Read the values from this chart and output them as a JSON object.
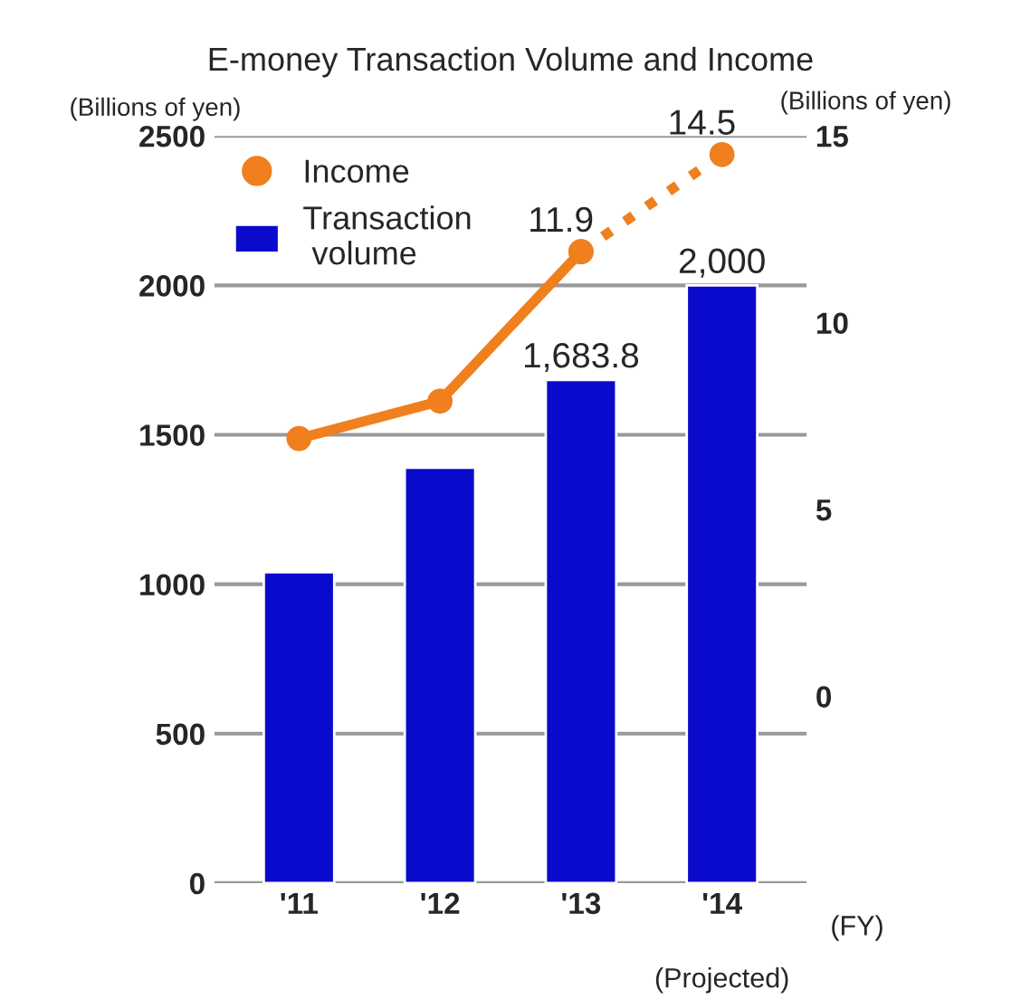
{
  "chart_data": {
    "type": "bar",
    "title": "E-money Transaction Volume and Income",
    "ylabel": "(Billions of yen)",
    "y2label": "(Billions of yen)",
    "categories": [
      "'11",
      "'12",
      "'13",
      "'14"
    ],
    "series": [
      {
        "name": "Transaction volume",
        "color": "#0a0acc",
        "values": [
          1040,
          1390,
          1683.8,
          2000
        ],
        "value_labels": [
          null,
          null,
          "1,683.8",
          "2,000"
        ]
      },
      {
        "name": "Income",
        "type": "line",
        "axis": "y2",
        "color": "#f07f1e",
        "marker": "circle",
        "line_style": "solid",
        "values": [
          6.9,
          7.9,
          11.9,
          null
        ],
        "value_labels": [
          null,
          null,
          "11.9",
          null
        ]
      },
      {
        "type": "line",
        "axis": "y2",
        "color": "#f07f1e",
        "marker": "circle",
        "line_style": "dotted",
        "values": [
          null,
          null,
          11.9,
          14.5
        ],
        "value_labels": [
          null,
          null,
          null,
          "14.5"
        ]
      }
    ],
    "ylim": [
      0,
      2500
    ],
    "yticks": [
      0,
      500,
      1000,
      1500,
      2000,
      2500
    ],
    "y2lim": [
      -5,
      15
    ],
    "y2ticks": [
      0,
      5,
      10,
      15
    ],
    "grid": "y",
    "legend": "top left",
    "annotations": [
      "(FY)",
      "(Projected)"
    ]
  }
}
